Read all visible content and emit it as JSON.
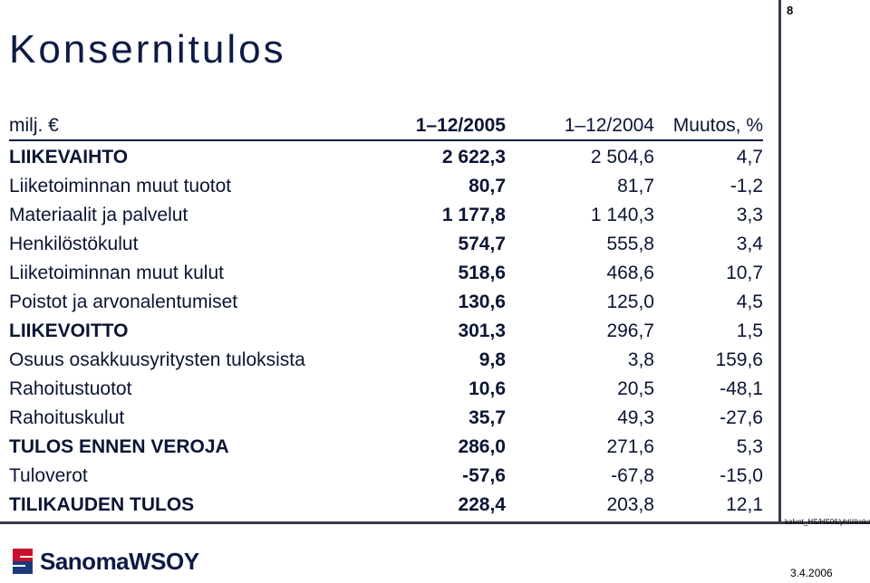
{
  "page_number": "8",
  "title": "Konsernitulos",
  "table": {
    "header": {
      "label": "milj. €",
      "col1": "1–12/2005",
      "col2": "1–12/2004",
      "col3": "Muutos, %"
    },
    "rows": [
      {
        "label": "LIIKEVAIHTO",
        "col1": "2 622,3",
        "col2": "2 504,6",
        "col3": "4,7"
      },
      {
        "label": "Liiketoiminnan muut tuotot",
        "col1": "80,7",
        "col2": "81,7",
        "col3": "-1,2"
      },
      {
        "label": "Materiaalit ja palvelut",
        "col1": "1 177,8",
        "col2": "1 140,3",
        "col3": "3,3"
      },
      {
        "label": "Henkilöstökulut",
        "col1": "574,7",
        "col2": "555,8",
        "col3": "3,4"
      },
      {
        "label": "Liiketoiminnan muut kulut",
        "col1": "518,6",
        "col2": "468,6",
        "col3": "10,7"
      },
      {
        "label": "Poistot ja arvonalentumiset",
        "col1": "130,6",
        "col2": "125,0",
        "col3": "4,5"
      },
      {
        "label": "LIIKEVOITTO",
        "col1": "301,3",
        "col2": "296,7",
        "col3": "1,5"
      },
      {
        "label": "Osuus osakkuusyritysten tuloksista",
        "col1": "9,8",
        "col2": "3,8",
        "col3": "159,6"
      },
      {
        "label": "Rahoitustuotot",
        "col1": "10,6",
        "col2": "20,5",
        "col3": "-48,1"
      },
      {
        "label": "Rahoituskulut",
        "col1": "35,7",
        "col2": "49,3",
        "col3": "-27,6"
      },
      {
        "label": "TULOS ENNEN VEROJA",
        "col1": "286,0",
        "col2": "271,6",
        "col3": "5,3"
      },
      {
        "label": "Tuloverot",
        "col1": "-57,6",
        "col2": "-67,8",
        "col3": "-15,0"
      },
      {
        "label": "TILIKAUDEN TULOS",
        "col1": "228,4",
        "col2": "203,8",
        "col3": "12,1"
      }
    ]
  },
  "logo": {
    "text": "SanomaWSOY"
  },
  "footer": {
    "file": "kalvot_HS/HS06/yhtiökokous0304",
    "date": "3.4.2006"
  },
  "colors": {
    "text": "#0d1a45",
    "logo_red": "#c8102e",
    "logo_blue": "#1f3a7a"
  }
}
